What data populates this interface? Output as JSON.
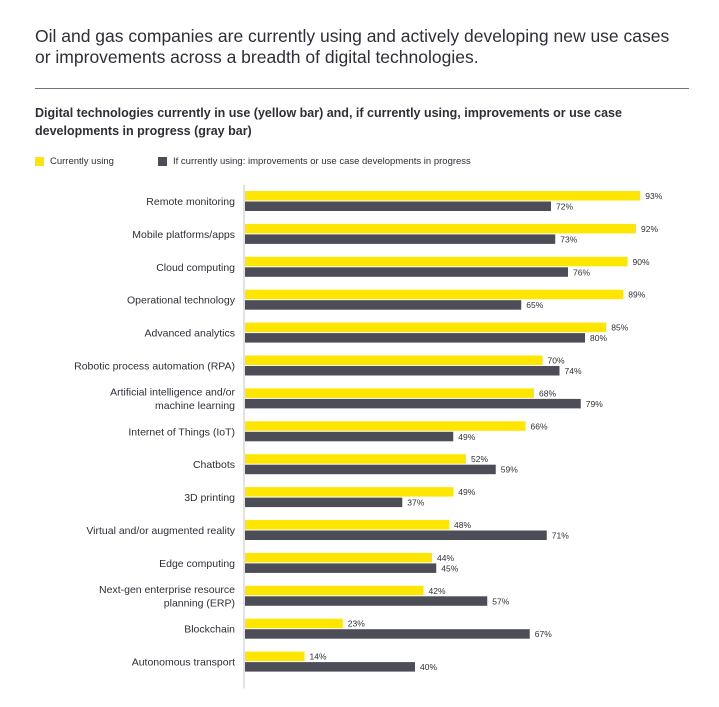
{
  "headline": "Oil and gas companies are currently using and actively developing new use cases or improvements across a breadth of digital technologies.",
  "chart_data": {
    "type": "bar",
    "orientation": "horizontal",
    "title": "Digital technologies currently in use (yellow bar) and, if currently using, improvements or use case developments in progress (gray bar)",
    "xlabel": "",
    "ylabel": "",
    "xlim": [
      0,
      100
    ],
    "value_suffix": "%",
    "grid": false,
    "legend_position": "top-left",
    "categories": [
      [
        "Remote monitoring"
      ],
      [
        "Mobile platforms/apps"
      ],
      [
        "Cloud computing"
      ],
      [
        "Operational technology"
      ],
      [
        "Advanced analytics"
      ],
      [
        "Robotic process automation (RPA)"
      ],
      [
        "Artificial intelligence and/or",
        "machine learning"
      ],
      [
        "Internet of Things (IoT)"
      ],
      [
        "Chatbots"
      ],
      [
        "3D printing"
      ],
      [
        "Virtual and/or augmented reality"
      ],
      [
        "Edge computing"
      ],
      [
        "Next-gen enterprise resource",
        "planning (ERP)"
      ],
      [
        "Blockchain"
      ],
      [
        "Autonomous transport"
      ]
    ],
    "series": [
      {
        "name": "Currently using",
        "color": "#ffe600",
        "values": [
          93,
          92,
          90,
          89,
          85,
          70,
          68,
          66,
          52,
          49,
          48,
          44,
          42,
          23,
          14
        ]
      },
      {
        "name": "If currently using: improvements or use case developments in progress",
        "color": "#4d4d57",
        "values": [
          72,
          73,
          76,
          65,
          80,
          74,
          79,
          49,
          59,
          37,
          71,
          45,
          57,
          67,
          40
        ]
      }
    ]
  }
}
